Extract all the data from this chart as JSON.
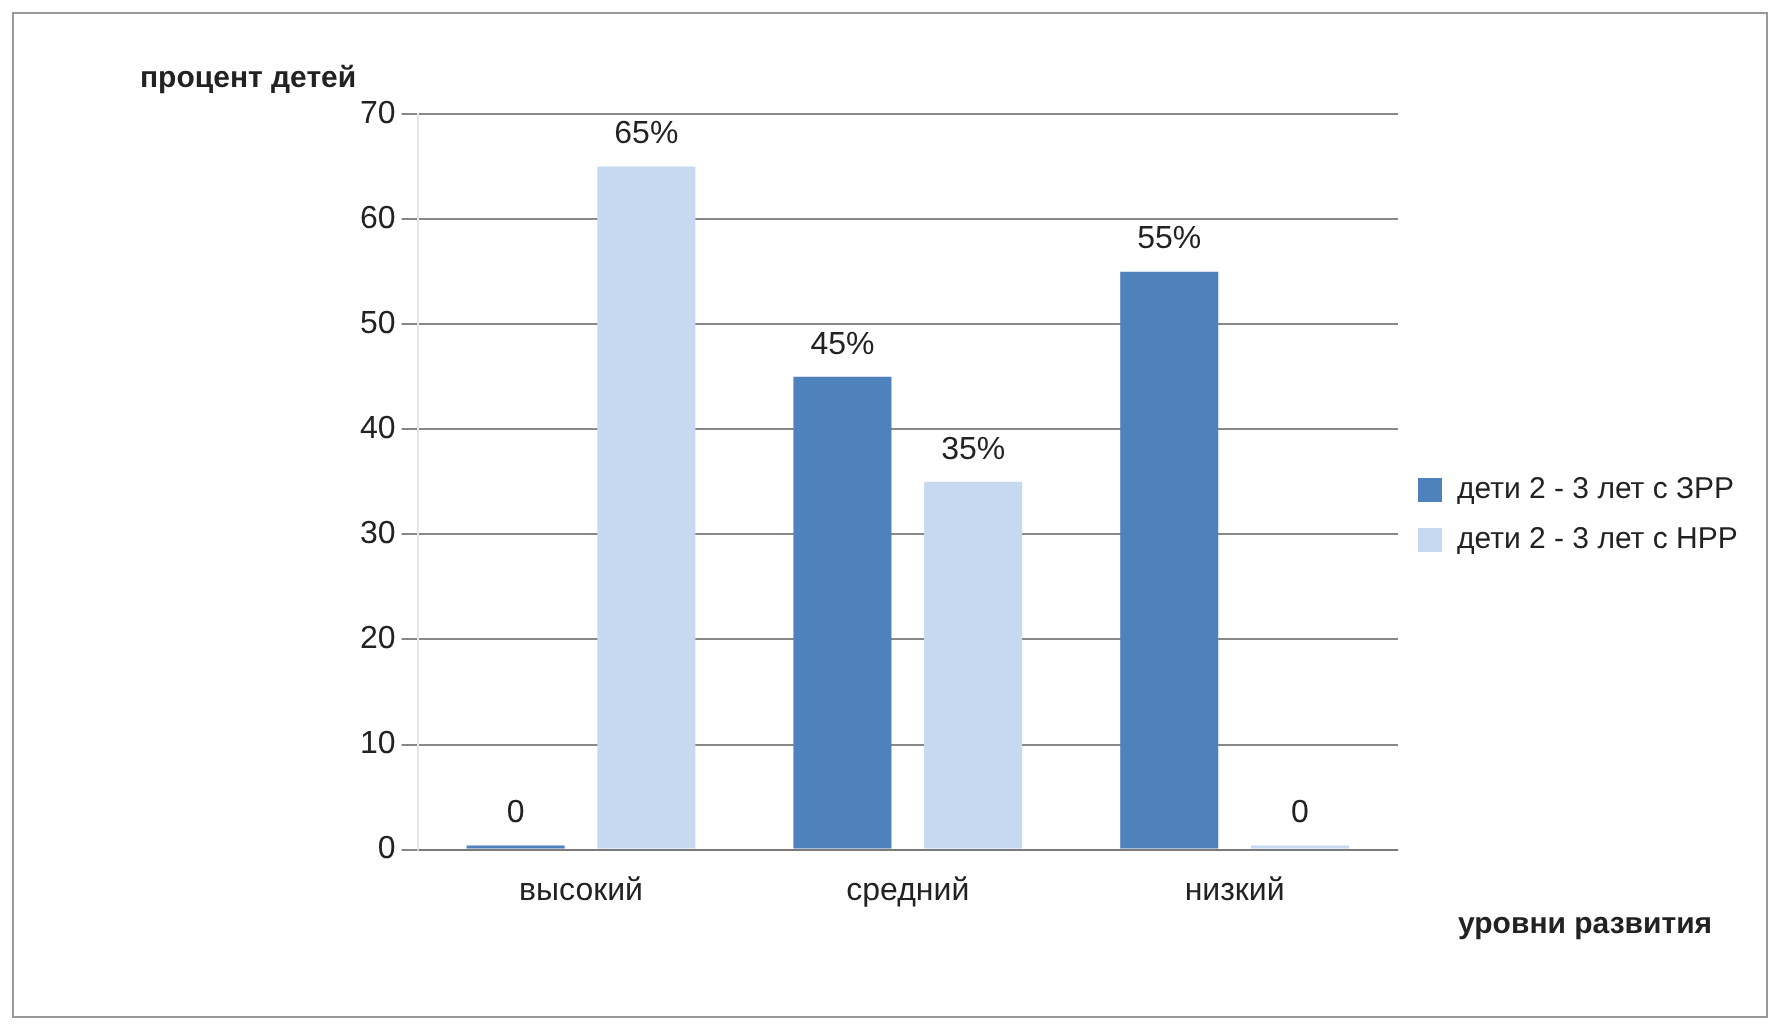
{
  "chart_data": {
    "type": "bar",
    "ylabel": "процент детей",
    "xlabel": "уровни развития",
    "categories": [
      "высокий",
      "средний",
      "низкий"
    ],
    "series": [
      {
        "name": "дети 2 - 3 лет с ЗРР",
        "color": "#4f81bd",
        "values": [
          0,
          45,
          55
        ],
        "value_labels": [
          "0",
          "45%",
          "55%"
        ]
      },
      {
        "name": "дети 2 - 3 лет с НРР",
        "color": "#c6d9f0",
        "values": [
          65,
          35,
          0
        ],
        "value_labels": [
          "65%",
          "35%",
          "0"
        ]
      }
    ],
    "ylim": [
      0,
      70
    ],
    "yticks": [
      0,
      10,
      20,
      30,
      40,
      50,
      60,
      70
    ],
    "grid": "y",
    "legend": "right"
  }
}
